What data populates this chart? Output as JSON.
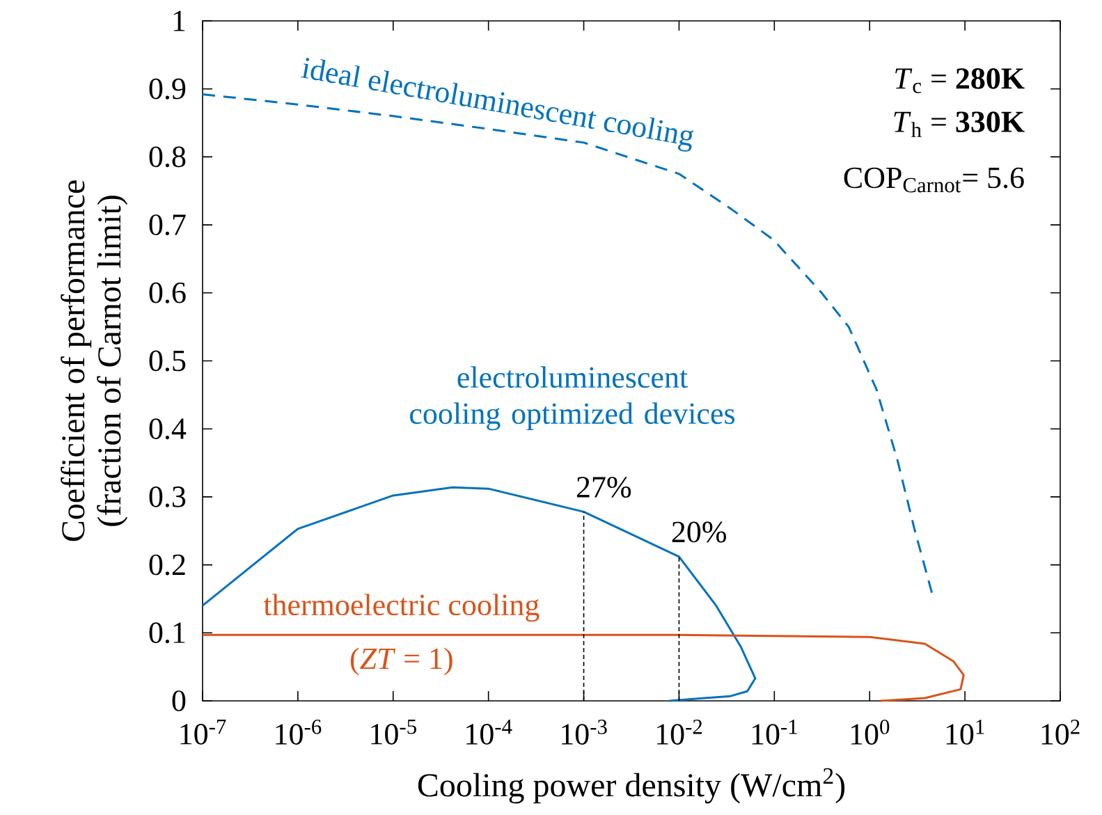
{
  "chart_data": {
    "type": "line",
    "xlabel": "Cooling power density (W/cm$^{2}$)",
    "ylabel": "Coefficient of performance (fraction of Carnot limit)",
    "log": "x",
    "xlim": [
      1e-07,
      100
    ],
    "ylim": [
      0,
      1
    ],
    "xticks": [
      {
        "value": 1e-07,
        "label": "10$^{-7}$"
      },
      {
        "value": 1e-06,
        "label": "10$^{-6}$"
      },
      {
        "value": 1e-05,
        "label": "10$^{-5}$"
      },
      {
        "value": 0.0001,
        "label": "10$^{-4}$"
      },
      {
        "value": 0.001,
        "label": "10$^{-3}$"
      },
      {
        "value": 0.01,
        "label": "10$^{-2}$"
      },
      {
        "value": 0.1,
        "label": "10$^{-1}$"
      },
      {
        "value": 1,
        "label": "10$^{0}$"
      },
      {
        "value": 10,
        "label": "10$^{1}$"
      },
      {
        "value": 100,
        "label": "10$^{2}$"
      }
    ],
    "yticks": [
      0,
      0.1,
      0.2,
      0.3,
      0.4,
      0.5,
      0.6,
      0.7,
      0.8,
      0.9,
      1
    ],
    "grid": false,
    "legend": false,
    "series": [
      {
        "name": "ideal electroluminescent cooling",
        "color": "#0072bd",
        "line_style": "dashed",
        "x": [
          1e-07,
          1e-06,
          1e-05,
          0.0001,
          0.001,
          0.01,
          0.0347,
          0.098,
          0.309,
          0.603,
          1.18,
          1.95,
          2.95,
          4.56
        ],
        "values": [
          0.892,
          0.877,
          0.86,
          0.841,
          0.821,
          0.775,
          0.724,
          0.678,
          0.601,
          0.55,
          0.458,
          0.355,
          0.253,
          0.156
        ]
      },
      {
        "name": "electroluminescent cooling optimized devices",
        "color": "#0072bd",
        "line_style": "solid",
        "x": [
          1e-07,
          1e-06,
          1e-05,
          4.2e-05,
          0.0001,
          0.001,
          0.01,
          0.0245,
          0.0447,
          0.063,
          0.052,
          0.0347,
          0.0079
        ],
        "values": [
          0.14,
          0.253,
          0.302,
          0.314,
          0.312,
          0.278,
          0.212,
          0.14,
          0.079,
          0.033,
          0.014,
          0.007,
          0
        ]
      },
      {
        "name": "thermoelectric cooling",
        "color": "#d95319",
        "line_style": "solid",
        "x": [
          1e-07,
          0.01,
          1,
          3.8,
          7.6,
          9.7,
          9,
          3.8,
          1.3
        ],
        "values": [
          0.097,
          0.097,
          0.094,
          0.084,
          0.058,
          0.038,
          0.017,
          0.004,
          0
        ]
      }
    ],
    "annotations": [
      "(*ZT* = 1)",
      "*T*$_{c}$ = **280K**",
      "*T*$_{h}$ = **330K**",
      "COP$_{Carnot}$= 5.6",
      {
        "text": "27%",
        "x": 0.001,
        "y": 0.278
      },
      {
        "text": "20%",
        "x": 0.01,
        "y": 0.212
      }
    ]
  }
}
